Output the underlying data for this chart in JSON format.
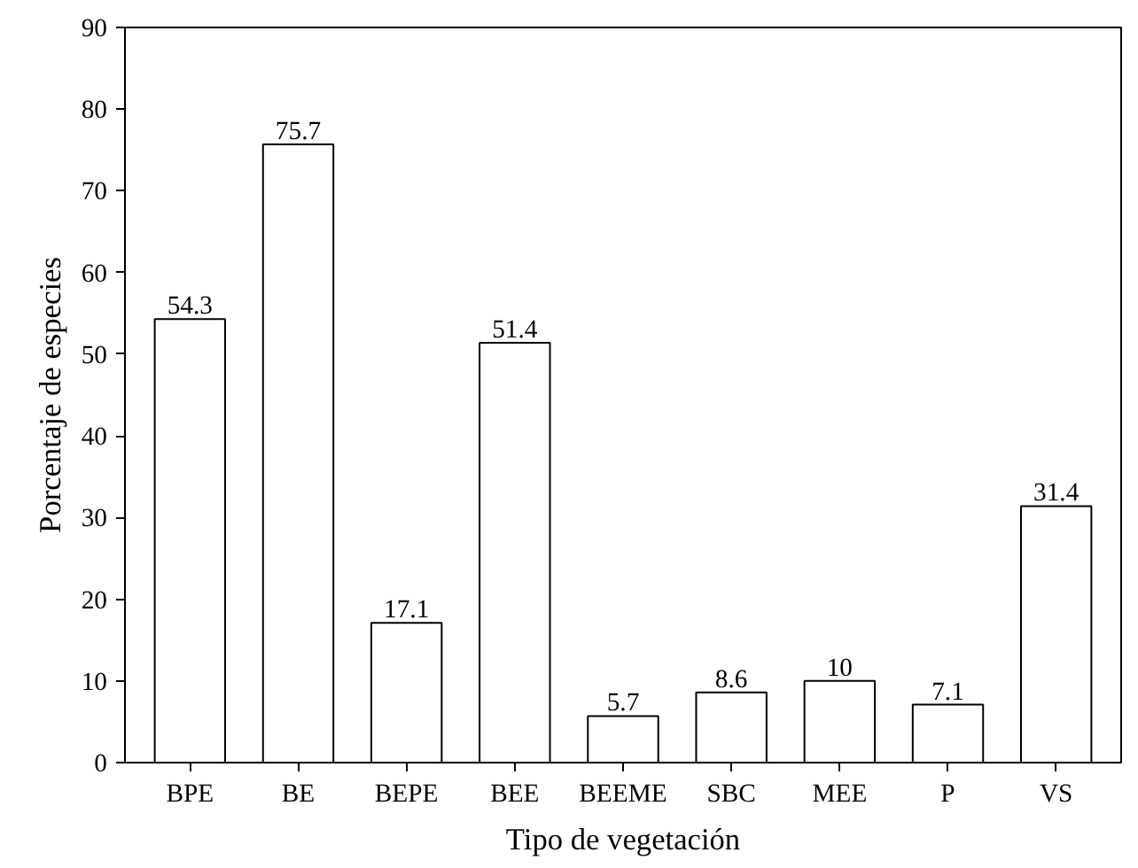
{
  "chart_data": {
    "type": "bar",
    "xlabel": "Tipo de vegetación",
    "ylabel": "Porcentaje de especies",
    "categories": [
      "BPE",
      "BE",
      "BEPE",
      "BEE",
      "BEEME",
      "SBC",
      "MEE",
      "P",
      "VS"
    ],
    "values": [
      54.3,
      75.7,
      17.1,
      51.4,
      5.7,
      8.6,
      10,
      7.1,
      31.4
    ],
    "color": "#ffffff",
    "ylim": [
      0,
      90
    ],
    "yticks": [
      0,
      10,
      20,
      30,
      40,
      50,
      60,
      70,
      80,
      90
    ],
    "data_labels": true,
    "grid": false
  }
}
